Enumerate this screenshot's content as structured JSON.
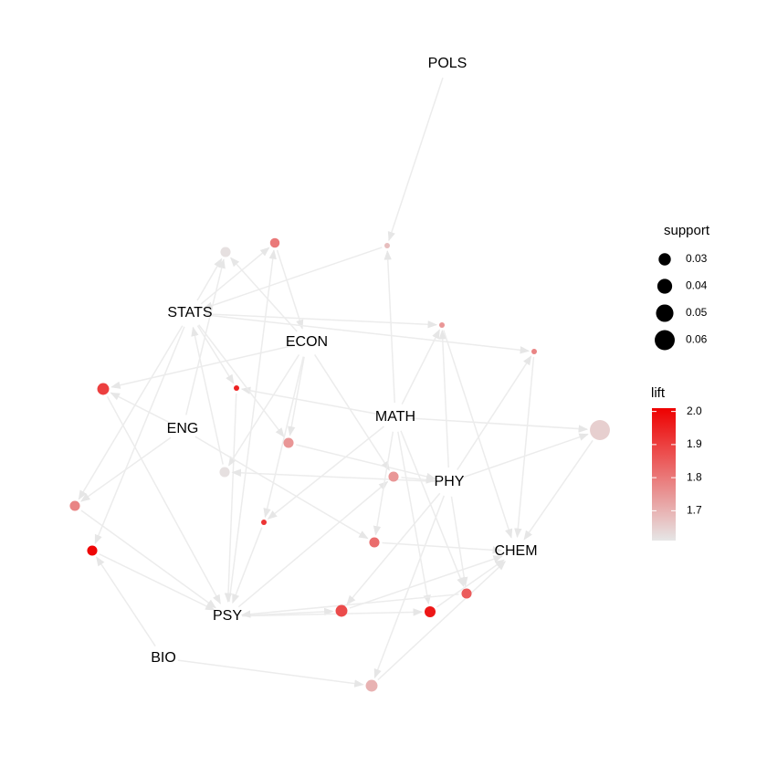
{
  "chart_data": {
    "type": "graph",
    "items": [
      "POLS",
      "STATS",
      "ECON",
      "ENG",
      "MATH",
      "PHY",
      "CHEM",
      "PSY",
      "BIO"
    ],
    "rules": [
      {
        "support": 0.027,
        "lift": 1.62
      },
      {
        "support": 0.025,
        "lift": 1.8
      },
      {
        "support": 0.01,
        "lift": 1.68
      },
      {
        "support": 0.01,
        "lift": 1.75
      },
      {
        "support": 0.01,
        "lift": 1.78
      },
      {
        "support": 0.033,
        "lift": 1.9
      },
      {
        "support": 0.01,
        "lift": 1.95
      },
      {
        "support": 0.027,
        "lift": 1.75
      },
      {
        "support": 0.027,
        "lift": 1.62
      },
      {
        "support": 0.063,
        "lift": 1.65
      },
      {
        "support": 0.027,
        "lift": 1.75
      },
      {
        "support": 0.027,
        "lift": 1.78
      },
      {
        "support": 0.01,
        "lift": 1.92
      },
      {
        "support": 0.027,
        "lift": 2.0
      },
      {
        "support": 0.027,
        "lift": 1.82
      },
      {
        "support": 0.033,
        "lift": 1.88
      },
      {
        "support": 0.03,
        "lift": 1.97
      },
      {
        "support": 0.027,
        "lift": 1.85
      },
      {
        "support": 0.033,
        "lift": 1.7
      }
    ],
    "size_legend": {
      "title": "support",
      "values": [
        0.03,
        0.04,
        0.05,
        0.06
      ]
    },
    "color_legend": {
      "title": "lift",
      "lim": [
        1.61,
        2.01
      ],
      "ticks": [
        1.7,
        1.8,
        1.9,
        {
          "value": 2,
          "label": "2.0"
        }
      ],
      "low_color": "#e6e6e6",
      "high_color": "#ee0000"
    }
  }
}
